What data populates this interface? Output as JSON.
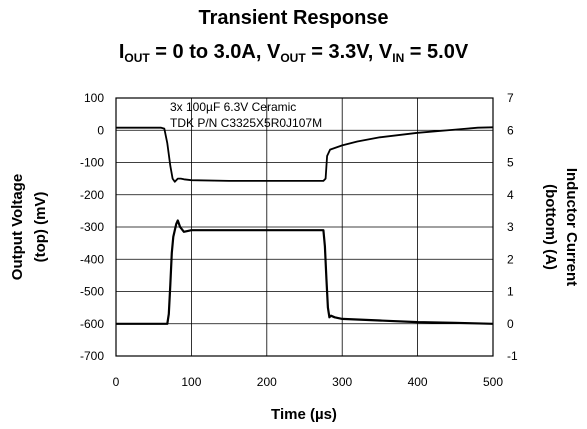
{
  "header": {
    "title": "Transient Response",
    "subtitle_parts": {
      "i": "I",
      "i_sub": "OUT",
      "i_rest": " = 0 to 3.0A, ",
      "v": "V",
      "v_sub": "OUT",
      "v_rest": " = 3.3V, ",
      "vin": "V",
      "vin_sub": "IN",
      "vin_rest": " = 5.0V"
    }
  },
  "chart_data": {
    "type": "line",
    "title": "Transient Response",
    "subtitle": "IOUT = 0 to 3.0A, VOUT = 3.3V, VIN = 5.0V",
    "xlabel": "Time (µs)",
    "ylabel_left_line1": "Output Voltage",
    "ylabel_left_line2": "(top)  (mV)",
    "ylabel_right_line1": "Inductor Current",
    "ylabel_right_line2": "(bottom) (A)",
    "xlim": [
      0,
      500
    ],
    "ylim_left": [
      -700,
      100
    ],
    "ylim_right": [
      -1,
      7
    ],
    "xticks": [
      0,
      100,
      200,
      300,
      400,
      500
    ],
    "yticks_left": [
      100,
      0,
      -100,
      -200,
      -300,
      -400,
      -500,
      -600,
      -700
    ],
    "yticks_right": [
      7,
      6,
      5,
      4,
      3,
      2,
      1,
      0,
      -1
    ],
    "grid": true,
    "annotation_line1": "3x 100µF 6.3V Ceramic",
    "annotation_line2": "TDK P/N C3325X5R0J107M",
    "series": [
      {
        "axis": "left",
        "x": [
          0,
          60,
          64,
          68,
          72,
          75,
          78,
          82,
          86,
          90,
          100,
          150,
          200,
          250,
          275,
          278,
          280,
          284,
          290,
          300,
          320,
          350,
          400,
          450,
          480,
          500
        ],
        "y": [
          8,
          8,
          5,
          -40,
          -110,
          -150,
          -160,
          -150,
          -150,
          -152,
          -155,
          -157,
          -157,
          -157,
          -157,
          -150,
          -80,
          -60,
          -55,
          -47,
          -35,
          -22,
          -8,
          2,
          8,
          9
        ]
      },
      {
        "axis": "right",
        "x": [
          0,
          68,
          70,
          72,
          74,
          76,
          78,
          80,
          82,
          85,
          90,
          100,
          150,
          200,
          250,
          275,
          277,
          279,
          281,
          283,
          285,
          290,
          300,
          350,
          400,
          450,
          500
        ],
        "y": [
          0,
          0,
          0.3,
          1.2,
          2.2,
          2.7,
          2.9,
          3.1,
          3.2,
          3.0,
          2.85,
          2.9,
          2.9,
          2.9,
          2.9,
          2.9,
          2.4,
          1.4,
          0.5,
          0.2,
          0.25,
          0.2,
          0.15,
          0.1,
          0.05,
          0.03,
          0
        ]
      }
    ]
  }
}
